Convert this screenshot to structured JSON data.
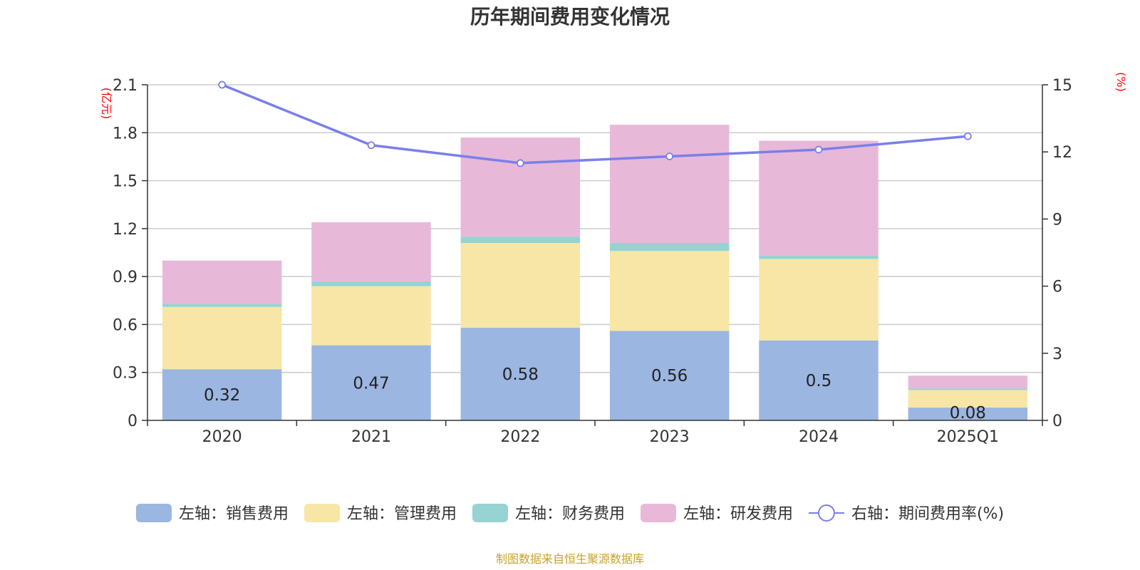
{
  "chart_data": {
    "type": "bar",
    "title": "历年期间费用变化情况",
    "categories": [
      "2020",
      "2021",
      "2022",
      "2023",
      "2024",
      "2025Q1"
    ],
    "stacked": true,
    "y_left": {
      "unit_label": "(亿元)",
      "ylim": [
        0,
        2.1
      ],
      "ticks": [
        "0",
        "0.3",
        "0.6",
        "0.9",
        "1.2",
        "1.5",
        "1.8",
        "2.1"
      ]
    },
    "y_right": {
      "unit_label": "(%)",
      "ylim": [
        0,
        15
      ],
      "ticks": [
        "0",
        "3",
        "6",
        "9",
        "12",
        "15"
      ]
    },
    "series": [
      {
        "name": "左轴：销售费用",
        "axis": "left",
        "type": "bar",
        "color": "#9bb6e1",
        "values": [
          0.32,
          0.47,
          0.58,
          0.56,
          0.5,
          0.08
        ],
        "data_labels": [
          "0.32",
          "0.47",
          "0.58",
          "0.56",
          "0.5",
          "0.08"
        ]
      },
      {
        "name": "左轴：管理费用",
        "axis": "left",
        "type": "bar",
        "color": "#f7e6a6",
        "values": [
          0.39,
          0.37,
          0.53,
          0.5,
          0.51,
          0.11
        ]
      },
      {
        "name": "左轴：财务费用",
        "axis": "left",
        "type": "bar",
        "color": "#96d3d3",
        "values": [
          0.02,
          0.03,
          0.04,
          0.05,
          0.02,
          0.01
        ]
      },
      {
        "name": "左轴：研发费用",
        "axis": "left",
        "type": "bar",
        "color": "#e8b8d9",
        "values": [
          0.27,
          0.37,
          0.62,
          0.74,
          0.72,
          0.08
        ]
      },
      {
        "name": "右轴：期间费用率(%)",
        "axis": "right",
        "type": "line",
        "color": "#7b7fe8",
        "values": [
          15.0,
          12.3,
          11.5,
          11.8,
          12.1,
          12.7
        ]
      }
    ],
    "grid": true,
    "legend_position": "bottom"
  },
  "footer": {
    "source": "制图数据来自恒生聚源数据库"
  }
}
